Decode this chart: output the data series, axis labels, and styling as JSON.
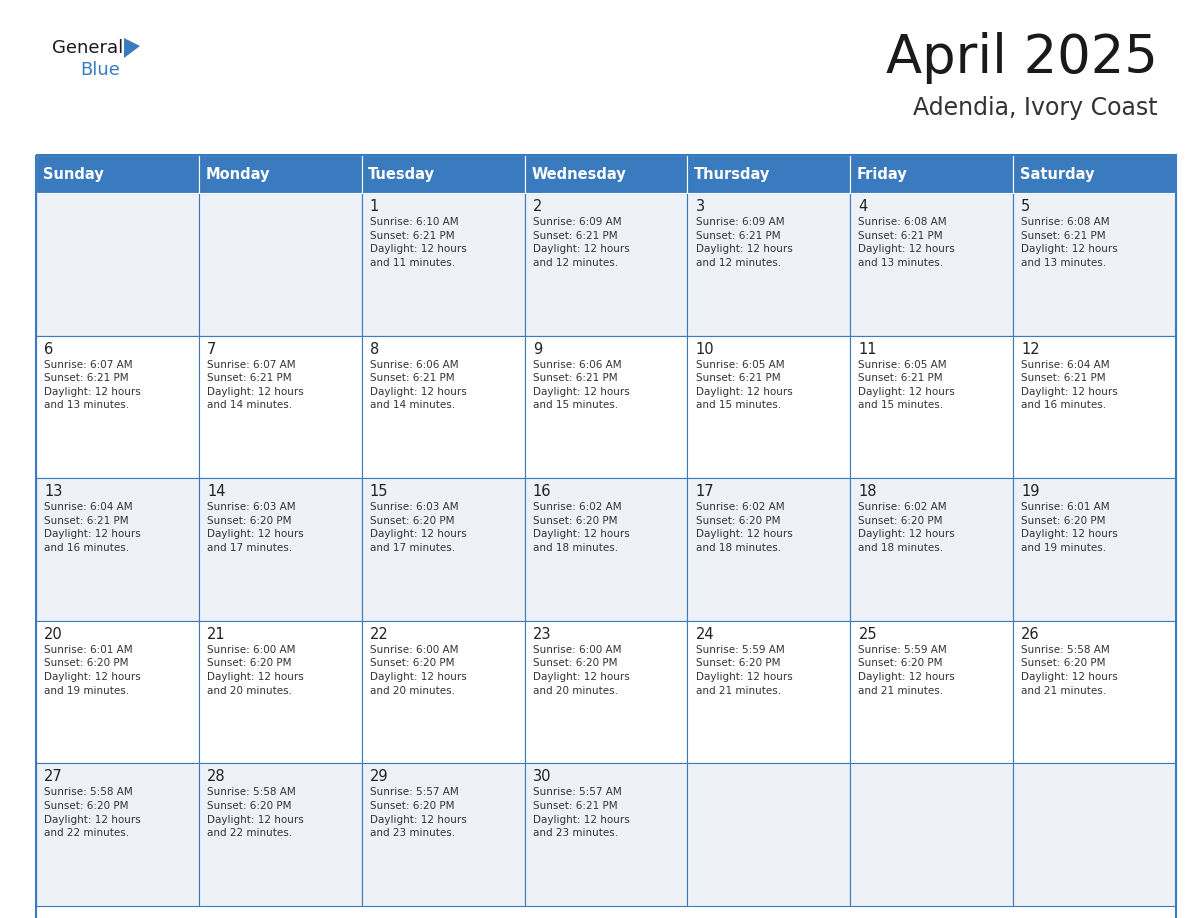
{
  "title": "April 2025",
  "subtitle": "Adendia, Ivory Coast",
  "header_bg": "#3a7bbf",
  "header_text_color": "#ffffff",
  "cell_bg_odd": "#eef2f7",
  "cell_bg_even": "#ffffff",
  "border_color": "#3a7bbf",
  "days_of_week": [
    "Sunday",
    "Monday",
    "Tuesday",
    "Wednesday",
    "Thursday",
    "Friday",
    "Saturday"
  ],
  "weeks": [
    [
      {
        "day": "",
        "info": ""
      },
      {
        "day": "",
        "info": ""
      },
      {
        "day": "1",
        "info": "Sunrise: 6:10 AM\nSunset: 6:21 PM\nDaylight: 12 hours\nand 11 minutes."
      },
      {
        "day": "2",
        "info": "Sunrise: 6:09 AM\nSunset: 6:21 PM\nDaylight: 12 hours\nand 12 minutes."
      },
      {
        "day": "3",
        "info": "Sunrise: 6:09 AM\nSunset: 6:21 PM\nDaylight: 12 hours\nand 12 minutes."
      },
      {
        "day": "4",
        "info": "Sunrise: 6:08 AM\nSunset: 6:21 PM\nDaylight: 12 hours\nand 13 minutes."
      },
      {
        "day": "5",
        "info": "Sunrise: 6:08 AM\nSunset: 6:21 PM\nDaylight: 12 hours\nand 13 minutes."
      }
    ],
    [
      {
        "day": "6",
        "info": "Sunrise: 6:07 AM\nSunset: 6:21 PM\nDaylight: 12 hours\nand 13 minutes."
      },
      {
        "day": "7",
        "info": "Sunrise: 6:07 AM\nSunset: 6:21 PM\nDaylight: 12 hours\nand 14 minutes."
      },
      {
        "day": "8",
        "info": "Sunrise: 6:06 AM\nSunset: 6:21 PM\nDaylight: 12 hours\nand 14 minutes."
      },
      {
        "day": "9",
        "info": "Sunrise: 6:06 AM\nSunset: 6:21 PM\nDaylight: 12 hours\nand 15 minutes."
      },
      {
        "day": "10",
        "info": "Sunrise: 6:05 AM\nSunset: 6:21 PM\nDaylight: 12 hours\nand 15 minutes."
      },
      {
        "day": "11",
        "info": "Sunrise: 6:05 AM\nSunset: 6:21 PM\nDaylight: 12 hours\nand 15 minutes."
      },
      {
        "day": "12",
        "info": "Sunrise: 6:04 AM\nSunset: 6:21 PM\nDaylight: 12 hours\nand 16 minutes."
      }
    ],
    [
      {
        "day": "13",
        "info": "Sunrise: 6:04 AM\nSunset: 6:21 PM\nDaylight: 12 hours\nand 16 minutes."
      },
      {
        "day": "14",
        "info": "Sunrise: 6:03 AM\nSunset: 6:20 PM\nDaylight: 12 hours\nand 17 minutes."
      },
      {
        "day": "15",
        "info": "Sunrise: 6:03 AM\nSunset: 6:20 PM\nDaylight: 12 hours\nand 17 minutes."
      },
      {
        "day": "16",
        "info": "Sunrise: 6:02 AM\nSunset: 6:20 PM\nDaylight: 12 hours\nand 18 minutes."
      },
      {
        "day": "17",
        "info": "Sunrise: 6:02 AM\nSunset: 6:20 PM\nDaylight: 12 hours\nand 18 minutes."
      },
      {
        "day": "18",
        "info": "Sunrise: 6:02 AM\nSunset: 6:20 PM\nDaylight: 12 hours\nand 18 minutes."
      },
      {
        "day": "19",
        "info": "Sunrise: 6:01 AM\nSunset: 6:20 PM\nDaylight: 12 hours\nand 19 minutes."
      }
    ],
    [
      {
        "day": "20",
        "info": "Sunrise: 6:01 AM\nSunset: 6:20 PM\nDaylight: 12 hours\nand 19 minutes."
      },
      {
        "day": "21",
        "info": "Sunrise: 6:00 AM\nSunset: 6:20 PM\nDaylight: 12 hours\nand 20 minutes."
      },
      {
        "day": "22",
        "info": "Sunrise: 6:00 AM\nSunset: 6:20 PM\nDaylight: 12 hours\nand 20 minutes."
      },
      {
        "day": "23",
        "info": "Sunrise: 6:00 AM\nSunset: 6:20 PM\nDaylight: 12 hours\nand 20 minutes."
      },
      {
        "day": "24",
        "info": "Sunrise: 5:59 AM\nSunset: 6:20 PM\nDaylight: 12 hours\nand 21 minutes."
      },
      {
        "day": "25",
        "info": "Sunrise: 5:59 AM\nSunset: 6:20 PM\nDaylight: 12 hours\nand 21 minutes."
      },
      {
        "day": "26",
        "info": "Sunrise: 5:58 AM\nSunset: 6:20 PM\nDaylight: 12 hours\nand 21 minutes."
      }
    ],
    [
      {
        "day": "27",
        "info": "Sunrise: 5:58 AM\nSunset: 6:20 PM\nDaylight: 12 hours\nand 22 minutes."
      },
      {
        "day": "28",
        "info": "Sunrise: 5:58 AM\nSunset: 6:20 PM\nDaylight: 12 hours\nand 22 minutes."
      },
      {
        "day": "29",
        "info": "Sunrise: 5:57 AM\nSunset: 6:20 PM\nDaylight: 12 hours\nand 23 minutes."
      },
      {
        "day": "30",
        "info": "Sunrise: 5:57 AM\nSunset: 6:21 PM\nDaylight: 12 hours\nand 23 minutes."
      },
      {
        "day": "",
        "info": ""
      },
      {
        "day": "",
        "info": ""
      },
      {
        "day": "",
        "info": ""
      }
    ]
  ]
}
